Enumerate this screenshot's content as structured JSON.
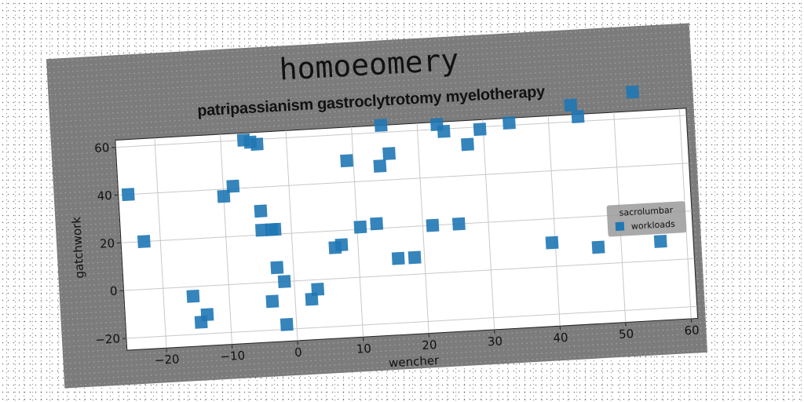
{
  "chart_data": {
    "type": "scatter",
    "suptitle": "homoeomery",
    "title": "patripassianism gastroclytrotomy myelotherapy",
    "xlabel": "wencher",
    "ylabel": "gatchwork",
    "xlim": [
      -26,
      61
    ],
    "ylim": [
      -25,
      63
    ],
    "xticks": [
      -20,
      -10,
      0,
      10,
      20,
      30,
      40,
      50,
      60
    ],
    "yticks": [
      -20,
      0,
      20,
      40,
      60
    ],
    "grid": true,
    "legend": {
      "title": "sacrolumbar",
      "placement": "right"
    },
    "marker_color": "#1f77b4",
    "series": [
      {
        "name": "workloads",
        "marker": "square",
        "x": [
          -24.5,
          -22.5,
          -15.5,
          -14.5,
          -13.5,
          -10,
          -8.5,
          -6.5,
          -5.5,
          -4.5,
          -4.5,
          -4.5,
          -3.5,
          -3,
          -2.5,
          -2.5,
          -1.5,
          -1.5,
          2.5,
          3.5,
          6.5,
          7.5,
          9,
          10.5,
          13,
          14,
          14.5,
          15.5,
          16,
          18.5,
          21.5,
          23,
          24,
          25.5,
          27.5,
          29.5,
          34,
          39.5,
          43.5,
          44.5,
          46.5,
          53,
          56
        ],
        "y": [
          40,
          20,
          -4,
          -15,
          -12,
          37,
          41,
          60,
          59,
          58,
          30,
          22,
          -8,
          22,
          6,
          22,
          0,
          -18,
          -8,
          -4,
          13,
          14,
          49,
          21,
          22,
          46,
          63,
          51,
          7,
          7,
          20,
          62,
          59,
          20,
          53,
          59,
          61,
          10,
          67,
          62,
          7,
          71,
          8
        ]
      }
    ]
  }
}
